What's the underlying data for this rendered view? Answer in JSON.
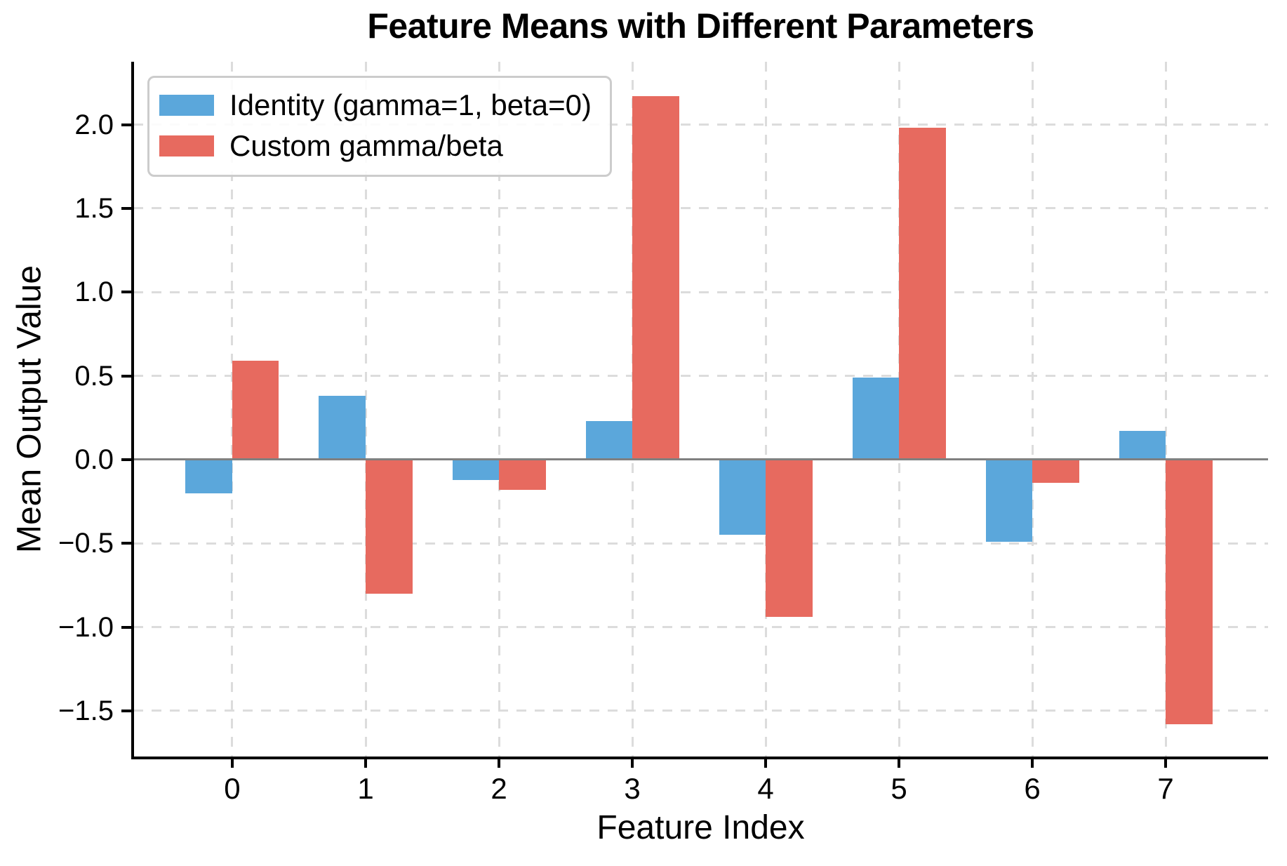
{
  "chart_data": {
    "type": "bar",
    "title": "Feature Means with Different Parameters",
    "xlabel": "Feature Index",
    "ylabel": "Mean Output Value",
    "categories": [
      "0",
      "1",
      "2",
      "3",
      "4",
      "5",
      "6",
      "7"
    ],
    "series": [
      {
        "name": "Identity (gamma=1, beta=0)",
        "color": "#5BA7DB",
        "values": [
          -0.2,
          0.38,
          -0.12,
          0.23,
          -0.45,
          0.49,
          -0.49,
          0.17
        ]
      },
      {
        "name": "Custom gamma/beta",
        "color": "#E76A5F",
        "values": [
          0.59,
          -0.8,
          -0.18,
          2.17,
          -0.94,
          1.98,
          -0.14,
          -1.58
        ]
      }
    ],
    "y_ticks": [
      2.0,
      1.5,
      1.0,
      0.5,
      0.0,
      -0.5,
      -1.0,
      -1.5
    ],
    "y_tick_labels": [
      "2.0",
      "1.5",
      "1.0",
      "0.5",
      "0.0",
      "−0.5",
      "−1.0",
      "−1.5"
    ],
    "x_tick_positions": [
      0,
      1,
      2,
      3,
      4,
      5,
      6,
      7
    ],
    "xlim": [
      -0.742,
      7.768
    ],
    "ylim": [
      -1.777,
      2.375
    ],
    "bar_width": 0.35,
    "grid": true,
    "grid_style": "dashed",
    "zero_line": true,
    "legend_position": "upper left",
    "colors": {
      "identity_bar": "#5BA7DB",
      "custom_bar": "#E76A5F",
      "gridline": "#dcdcdc",
      "zero_line": "#808080",
      "spine": "#000000",
      "text": "#000000",
      "legend_border": "#cccccc",
      "background": "#ffffff"
    }
  }
}
